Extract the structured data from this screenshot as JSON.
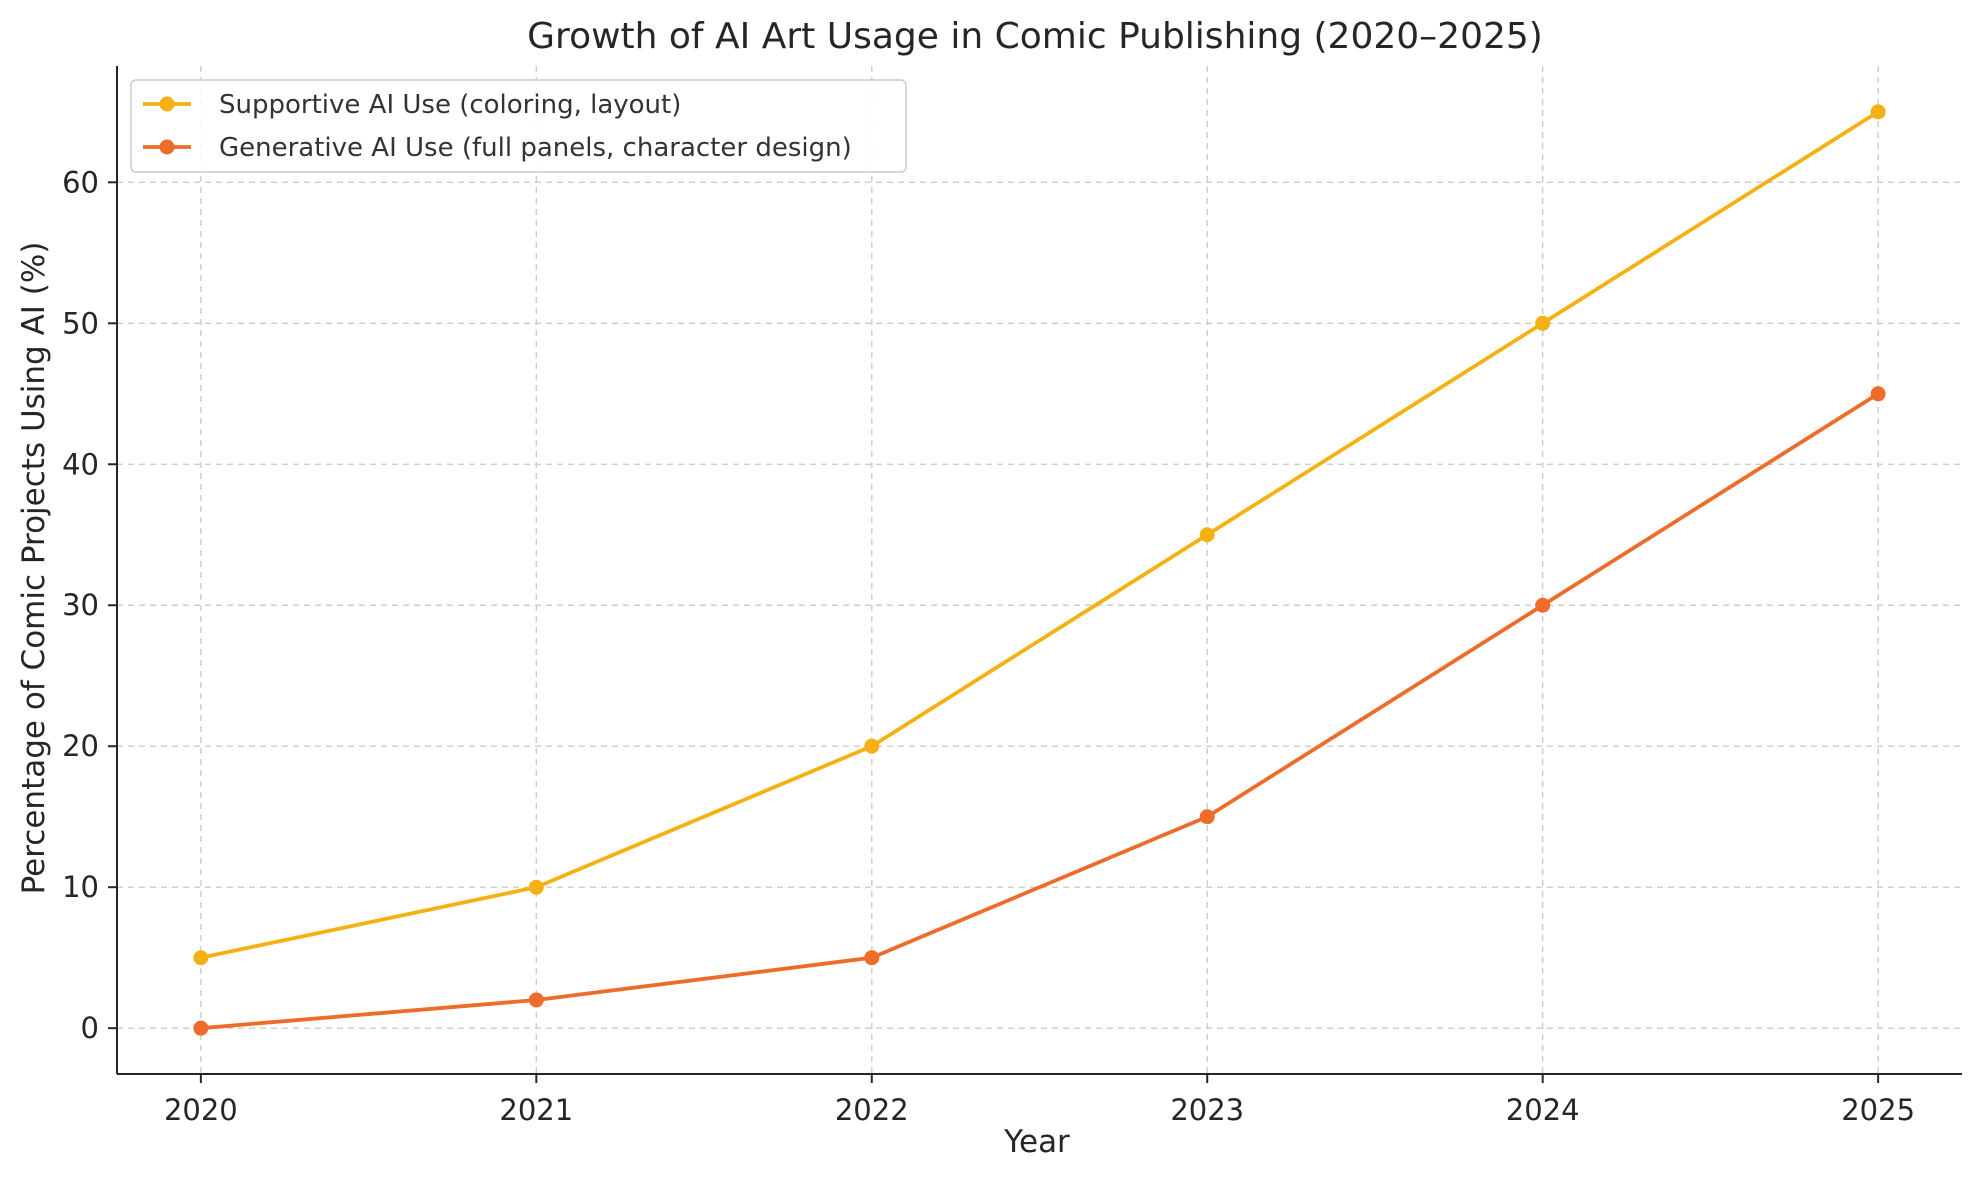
{
  "chart_data": {
    "type": "line",
    "title": "Growth of AI Art Usage in Comic Publishing (2020–2025)",
    "xlabel": "Year",
    "ylabel": "Percentage of Comic Projects Using AI (%)",
    "x": [
      "2020",
      "2021",
      "2022",
      "2023",
      "2024",
      "2025"
    ],
    "xlim": [
      2019.75,
      2025.25
    ],
    "ylim": [
      -3.25,
      68.25
    ],
    "yticks": [
      0,
      10,
      20,
      30,
      40,
      50,
      60
    ],
    "grid": true,
    "legend_position": "top-left",
    "series": [
      {
        "name": "Supportive AI Use (coloring, layout)",
        "color": "#f5b012",
        "values": [
          5,
          10,
          20,
          35,
          50,
          65
        ]
      },
      {
        "name": "Generative AI Use (full panels, character design)",
        "color": "#ee6c2a",
        "values": [
          0,
          2,
          5,
          15,
          30,
          45
        ]
      }
    ]
  }
}
